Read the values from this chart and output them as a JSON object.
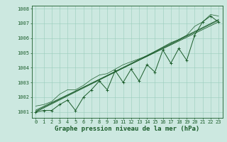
{
  "title": "Graphe pression niveau de la mer (hPa)",
  "hours": [
    0,
    1,
    2,
    3,
    4,
    5,
    6,
    7,
    8,
    9,
    10,
    11,
    12,
    13,
    14,
    15,
    16,
    17,
    18,
    19,
    20,
    21,
    22,
    23
  ],
  "pressure": [
    1001.0,
    1001.1,
    1001.1,
    1001.5,
    1001.8,
    1001.1,
    1002.0,
    1002.5,
    1003.1,
    1002.5,
    1003.8,
    1003.0,
    1003.9,
    1003.1,
    1004.2,
    1003.7,
    1005.2,
    1004.3,
    1005.3,
    1004.5,
    1006.2,
    1007.1,
    1007.5,
    1007.1
  ],
  "envelope_hi": [
    1001.4,
    1001.5,
    1001.7,
    1002.2,
    1002.5,
    1002.5,
    1002.8,
    1003.2,
    1003.5,
    1003.6,
    1003.9,
    1004.2,
    1004.4,
    1004.6,
    1004.8,
    1005.1,
    1005.4,
    1005.7,
    1005.9,
    1006.2,
    1006.8,
    1007.1,
    1007.6,
    1007.5
  ],
  "trend1": [
    1001.0,
    1001.27,
    1001.54,
    1001.81,
    1002.08,
    1002.35,
    1002.62,
    1002.89,
    1003.16,
    1003.43,
    1003.7,
    1003.97,
    1004.24,
    1004.51,
    1004.78,
    1005.05,
    1005.32,
    1005.59,
    1005.86,
    1006.13,
    1006.4,
    1006.67,
    1006.94,
    1007.21
  ],
  "trend2": [
    1001.05,
    1001.32,
    1001.59,
    1001.86,
    1002.13,
    1002.4,
    1002.67,
    1002.94,
    1003.21,
    1003.48,
    1003.75,
    1004.02,
    1004.29,
    1004.56,
    1004.83,
    1005.1,
    1005.37,
    1005.64,
    1005.91,
    1006.18,
    1006.45,
    1006.72,
    1006.99,
    1007.26
  ],
  "trend3": [
    1001.12,
    1001.38,
    1001.64,
    1001.9,
    1002.16,
    1002.42,
    1002.68,
    1002.94,
    1003.2,
    1003.46,
    1003.72,
    1003.98,
    1004.24,
    1004.5,
    1004.76,
    1005.02,
    1005.28,
    1005.54,
    1005.8,
    1006.06,
    1006.32,
    1006.58,
    1006.84,
    1007.1
  ],
  "ylim_min": 1000.6,
  "ylim_max": 1008.2,
  "yticks": [
    1001,
    1002,
    1003,
    1004,
    1005,
    1006,
    1007,
    1008
  ],
  "bg_color": "#cce8e0",
  "grid_color": "#99ccbb",
  "line_color": "#1a5c2a",
  "tick_fontsize": 5,
  "title_fontsize": 6.5
}
